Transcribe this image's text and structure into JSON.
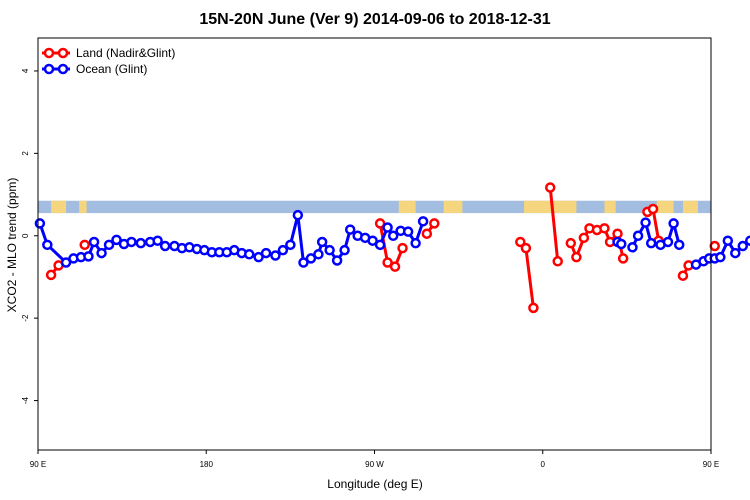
{
  "chart_data": {
    "type": "line",
    "title": "15N-20N June (Ver 9)   2014-09-06 to 2018-12-31",
    "xlabel": "Longitude (deg E)",
    "ylabel": "XCO2 - MLO trend (ppm)",
    "xlim": [
      90,
      450
    ],
    "ylim": [
      -5.2,
      4.8
    ],
    "x_ticks": [
      {
        "value": 90,
        "label": "90 E"
      },
      {
        "value": 180,
        "label": "180"
      },
      {
        "value": 270,
        "label": "90 W"
      },
      {
        "value": 360,
        "label": "0"
      },
      {
        "value": 450,
        "label": "90 E"
      },
      {
        "value": 540,
        "label": "180"
      }
    ],
    "y_ticks": [
      {
        "value": -4,
        "label": "-4"
      },
      {
        "value": -2,
        "label": "-2"
      },
      {
        "value": 0,
        "label": "0"
      },
      {
        "value": 2,
        "label": "2"
      },
      {
        "value": 4,
        "label": "4"
      }
    ],
    "grid": false,
    "legend_position": "top-left",
    "band": {
      "y_min": 0.55,
      "y_max": 0.85,
      "color_ocean": "#a3bde0",
      "color_land": "#f5d57d"
    },
    "land_segments": [
      [
        97,
        105
      ],
      [
        112,
        116
      ],
      [
        283,
        292
      ],
      [
        307,
        317
      ],
      [
        350,
        378
      ],
      [
        393,
        399
      ],
      [
        421,
        430
      ],
      [
        435,
        443
      ]
    ],
    "series": [
      {
        "name": "Land (Nadir&Glint)",
        "color": "#ff0000",
        "segments": [
          [
            [
              97,
              -0.95
            ],
            [
              101,
              -0.72
            ]
          ],
          [
            [
              115,
              -0.22
            ]
          ],
          [
            [
              273,
              0.3
            ],
            [
              277,
              -0.65
            ]
          ],
          [
            [
              281,
              -0.75
            ],
            [
              285,
              -0.3
            ]
          ],
          [
            [
              298,
              0.05
            ],
            [
              302,
              0.3
            ]
          ],
          [
            [
              348,
              -0.15
            ],
            [
              351,
              -0.3
            ],
            [
              355,
              -1.75
            ]
          ],
          [
            [
              364,
              1.17
            ],
            [
              368,
              -0.62
            ]
          ],
          [
            [
              375,
              -0.18
            ],
            [
              378,
              -0.52
            ],
            [
              382,
              -0.05
            ],
            [
              385,
              0.18
            ],
            [
              389,
              0.14
            ],
            [
              393,
              0.18
            ],
            [
              396,
              -0.15
            ],
            [
              400,
              0.05
            ],
            [
              403,
              -0.55
            ]
          ],
          [
            [
              416,
              0.58
            ],
            [
              419,
              0.65
            ],
            [
              422,
              -0.12
            ]
          ],
          [
            [
              435,
              -0.97
            ],
            [
              438,
              -0.72
            ]
          ],
          [
            [
              452,
              -0.25
            ]
          ]
        ]
      },
      {
        "name": "Ocean (Glint)",
        "color": "#0000ff",
        "segments": [
          [
            [
              91,
              0.3
            ],
            [
              95,
              -0.22
            ],
            [
              105,
              -0.65
            ],
            [
              109,
              -0.55
            ],
            [
              113,
              -0.52
            ],
            [
              117,
              -0.5
            ],
            [
              120,
              -0.15
            ],
            [
              124,
              -0.42
            ],
            [
              128,
              -0.22
            ],
            [
              132,
              -0.1
            ],
            [
              136,
              -0.2
            ],
            [
              140,
              -0.15
            ],
            [
              145,
              -0.18
            ],
            [
              150,
              -0.15
            ],
            [
              154,
              -0.12
            ],
            [
              158,
              -0.25
            ],
            [
              163,
              -0.25
            ],
            [
              167,
              -0.3
            ],
            [
              171,
              -0.28
            ],
            [
              175,
              -0.32
            ],
            [
              179,
              -0.35
            ],
            [
              183,
              -0.4
            ],
            [
              187,
              -0.4
            ],
            [
              191,
              -0.4
            ],
            [
              195,
              -0.35
            ],
            [
              199,
              -0.42
            ],
            [
              203,
              -0.45
            ],
            [
              208,
              -0.52
            ],
            [
              212,
              -0.42
            ],
            [
              217,
              -0.48
            ],
            [
              221,
              -0.35
            ],
            [
              225,
              -0.22
            ],
            [
              229,
              0.5
            ],
            [
              232,
              -0.65
            ],
            [
              236,
              -0.55
            ],
            [
              240,
              -0.45
            ],
            [
              242,
              -0.15
            ],
            [
              246,
              -0.35
            ],
            [
              250,
              -0.6
            ],
            [
              254,
              -0.35
            ],
            [
              257,
              0.15
            ],
            [
              261,
              0.0
            ],
            [
              265,
              -0.05
            ],
            [
              269,
              -0.12
            ],
            [
              273,
              -0.22
            ],
            [
              277,
              0.2
            ],
            [
              280,
              0.0
            ],
            [
              284,
              0.12
            ],
            [
              288,
              0.1
            ],
            [
              292,
              -0.18
            ],
            [
              296,
              0.35
            ]
          ],
          [
            [
              400,
              -0.15
            ],
            [
              402,
              -0.2
            ]
          ],
          [
            [
              408,
              -0.28
            ],
            [
              411,
              0.0
            ],
            [
              415,
              0.32
            ],
            [
              418,
              -0.18
            ]
          ],
          [
            [
              423,
              -0.22
            ],
            [
              427,
              -0.15
            ],
            [
              430,
              0.3
            ],
            [
              433,
              -0.22
            ]
          ],
          [
            [
              442,
              -0.7
            ],
            [
              446,
              -0.62
            ],
            [
              449,
              -0.55
            ],
            [
              452,
              -0.55
            ],
            [
              455,
              -0.52
            ],
            [
              459,
              -0.12
            ],
            [
              463,
              -0.42
            ],
            [
              467,
              -0.25
            ],
            [
              471,
              -0.12
            ],
            [
              475,
              -0.2
            ],
            [
              479,
              -0.18
            ],
            [
              483,
              -0.18
            ],
            [
              487,
              -0.15
            ],
            [
              491,
              -0.1
            ],
            [
              495,
              -0.22
            ],
            [
              499,
              -0.2
            ]
          ]
        ]
      }
    ]
  }
}
